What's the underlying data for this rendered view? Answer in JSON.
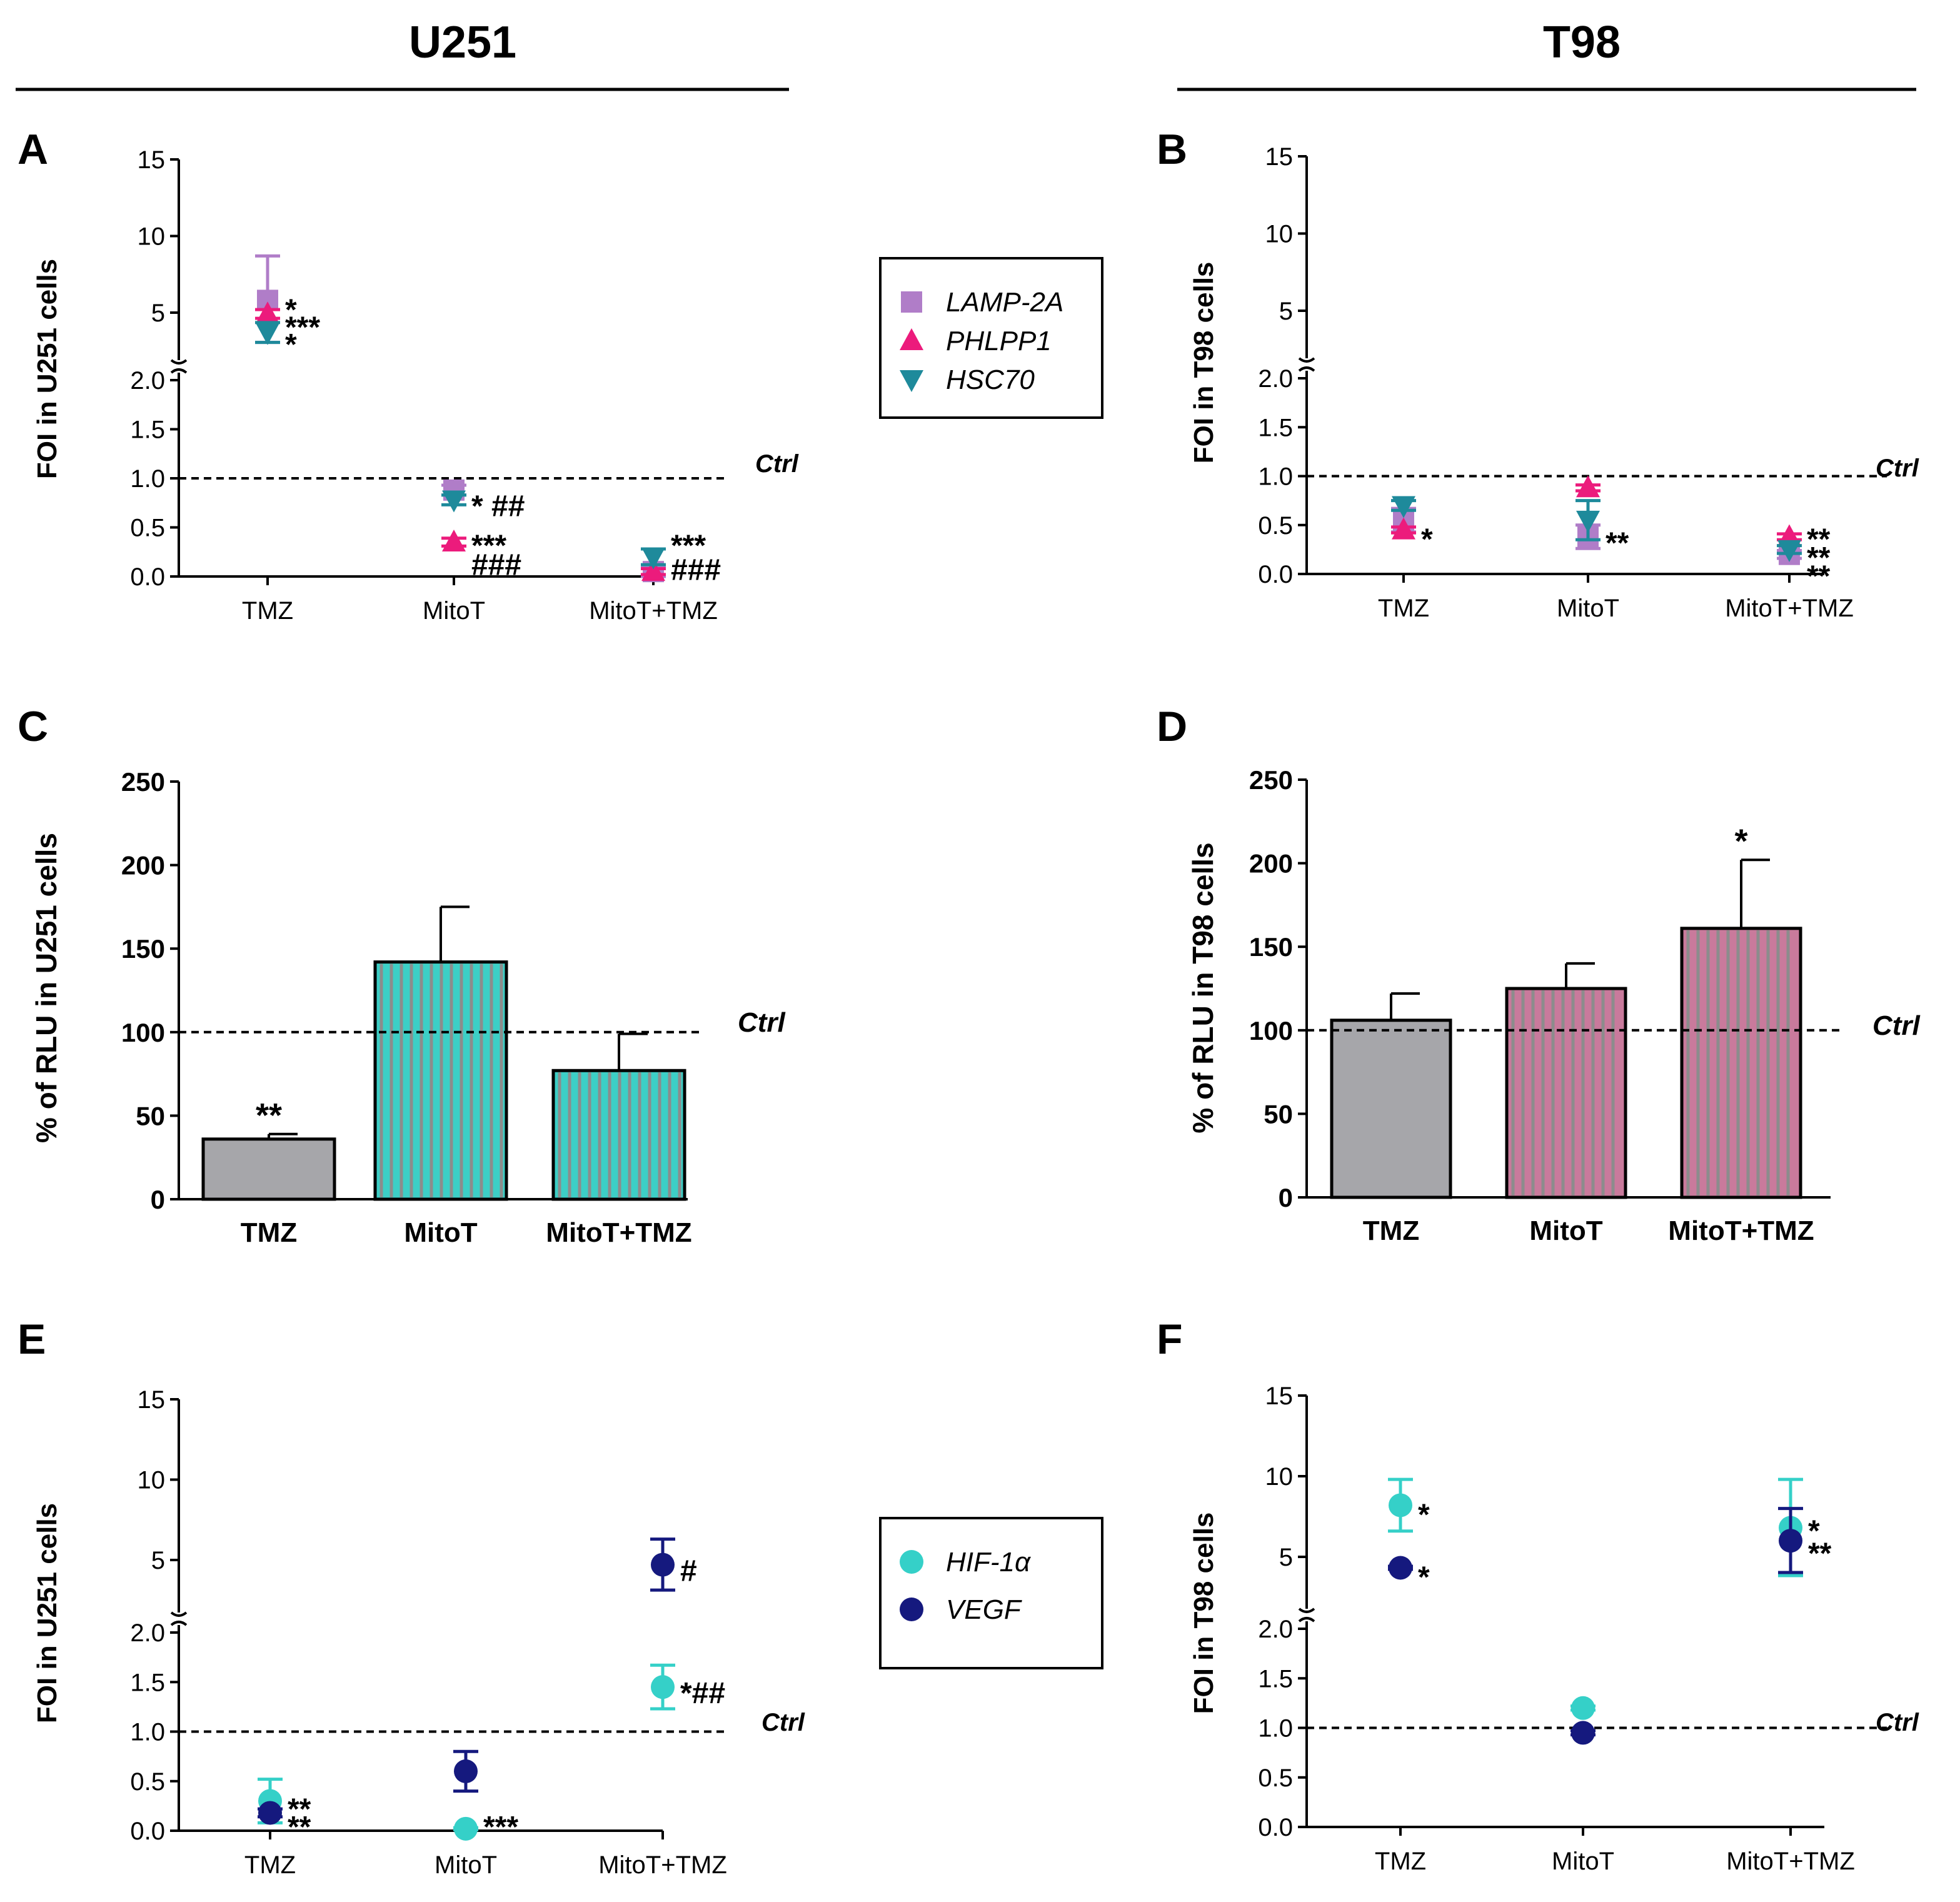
{
  "headers": {
    "left": "U251",
    "right": "T98"
  },
  "ctrl_label": "Ctrl",
  "legend_top": {
    "items": [
      {
        "label": "LAMP-2A",
        "marker": "square",
        "color": "#B07DC8"
      },
      {
        "label": "PHLPP1",
        "marker": "triangle-up",
        "color": "#EC1B7C"
      },
      {
        "label": "HSC70",
        "marker": "triangle-down",
        "color": "#1E8A9B"
      }
    ]
  },
  "legend_bottom": {
    "items": [
      {
        "label": "HIF-1α",
        "marker": "circle",
        "color": "#35D0C8"
      },
      {
        "label": "VEGF",
        "marker": "circle",
        "color": "#15197E"
      }
    ]
  },
  "colors": {
    "lamp": "#B07DC8",
    "phlpp": "#EC1B7C",
    "hsc": "#1E8A9B",
    "hif": "#35D0C8",
    "vegf": "#15197E",
    "grey_bar": "#A6A6AA",
    "teal_bar": "#3CCFC6",
    "pink_bar": "#C97A9C"
  },
  "chart_data": [
    {
      "panel": "A",
      "type": "scatter",
      "ylabel": "FOI in U251 cells",
      "categories": [
        "TMZ",
        "MitoT",
        "MitoT+TMZ"
      ],
      "y_lower_range": [
        0,
        2
      ],
      "y_upper_range": [
        2,
        15
      ],
      "y_lower_ticks": [
        "0.0",
        "0.5",
        "1.0",
        "1.5",
        "2.0"
      ],
      "y_upper_ticks": [
        "5",
        "10",
        "15"
      ],
      "reference_line": 1.0,
      "series": [
        {
          "name": "LAMP-2A",
          "values": [
            5.8,
            0.88,
            0.05
          ],
          "errors": [
            2.9,
            0.05,
            0.05
          ]
        },
        {
          "name": "PHLPP1",
          "values": [
            4.9,
            0.35,
            0.05
          ],
          "errors": [
            0.3,
            0.04,
            0.03
          ]
        },
        {
          "name": "HSC70",
          "values": [
            3.6,
            0.78,
            0.2
          ],
          "errors": [
            0.7,
            0.05,
            0.08
          ]
        }
      ],
      "annotations": [
        {
          "category": "TMZ",
          "text": "*",
          "value": 5.6
        },
        {
          "category": "TMZ",
          "text": "***",
          "value": 4.4
        },
        {
          "category": "TMZ",
          "text": "*",
          "value": 3.2
        },
        {
          "category": "MitoT",
          "text": "* ##",
          "value": 0.78
        },
        {
          "category": "MitoT",
          "text": "***",
          "value": 0.38
        },
        {
          "category": "MitoT",
          "text": "###",
          "value": 0.18
        },
        {
          "category": "MitoT+TMZ",
          "text": "***",
          "value": 0.38
        },
        {
          "category": "MitoT+TMZ",
          "text": "###",
          "value": 0.13
        }
      ]
    },
    {
      "panel": "B",
      "type": "scatter",
      "ylabel": "FOI in T98 cells",
      "categories": [
        "TMZ",
        "MitoT",
        "MitoT+TMZ"
      ],
      "y_lower_range": [
        0,
        2
      ],
      "y_upper_range": [
        2,
        15
      ],
      "y_lower_ticks": [
        "0.0",
        "0.5",
        "1.0",
        "1.5",
        "2.0"
      ],
      "y_upper_ticks": [
        "5",
        "10",
        "15"
      ],
      "reference_line": 1.0,
      "series": [
        {
          "name": "LAMP-2A",
          "values": [
            0.55,
            0.38,
            0.2
          ],
          "errors": [
            0.12,
            0.12,
            0.04
          ]
        },
        {
          "name": "PHLPP1",
          "values": [
            0.45,
            0.88,
            0.38
          ],
          "errors": [
            0.03,
            0.03,
            0.03
          ]
        },
        {
          "name": "HSC70",
          "values": [
            0.7,
            0.55,
            0.25
          ],
          "errors": [
            0.05,
            0.2,
            0.04
          ]
        }
      ],
      "annotations": [
        {
          "category": "TMZ",
          "text": "*",
          "value": 0.42
        },
        {
          "category": "MitoT",
          "text": "**",
          "value": 0.38
        },
        {
          "category": "MitoT+TMZ",
          "text": "**",
          "value": 0.42
        },
        {
          "category": "MitoT+TMZ",
          "text": "**",
          "value": 0.23
        },
        {
          "category": "MitoT+TMZ",
          "text": "**",
          "value": 0.04
        }
      ]
    },
    {
      "panel": "C",
      "type": "bar",
      "ylabel": "% of RLU in U251 cells",
      "categories": [
        "TMZ",
        "MitoT",
        "MitoT+TMZ"
      ],
      "values": [
        36,
        142,
        77
      ],
      "errors": [
        3,
        33,
        22
      ],
      "ylim": [
        0,
        250
      ],
      "y_ticks": [
        "0",
        "50",
        "100",
        "150",
        "200",
        "250"
      ],
      "reference_line": 100,
      "annotations": [
        {
          "category": "TMZ",
          "text": "**"
        }
      ]
    },
    {
      "panel": "D",
      "type": "bar",
      "ylabel": "% of RLU in T98 cells",
      "categories": [
        "TMZ",
        "MitoT",
        "MitoT+TMZ"
      ],
      "values": [
        106,
        125,
        161
      ],
      "errors": [
        16,
        15,
        41
      ],
      "ylim": [
        0,
        250
      ],
      "y_ticks": [
        "0",
        "50",
        "100",
        "150",
        "200",
        "250"
      ],
      "reference_line": 100,
      "annotations": [
        {
          "category": "MitoT+TMZ",
          "text": "*"
        }
      ]
    },
    {
      "panel": "E",
      "type": "scatter",
      "ylabel": "FOI in U251 cells",
      "categories": [
        "TMZ",
        "MitoT",
        "MitoT+TMZ"
      ],
      "y_lower_range": [
        0,
        2
      ],
      "y_upper_range": [
        2,
        15
      ],
      "y_lower_ticks": [
        "0.0",
        "0.5",
        "1.0",
        "1.5",
        "2.0"
      ],
      "y_upper_ticks": [
        "5",
        "10",
        "15"
      ],
      "reference_line": 1.0,
      "series": [
        {
          "name": "HIF-1α",
          "values": [
            0.3,
            0.02,
            1.45
          ],
          "errors": [
            0.22,
            0.01,
            0.22
          ]
        },
        {
          "name": "VEGF",
          "values": [
            0.18,
            0.6,
            4.7
          ],
          "errors": [
            0.04,
            0.2,
            1.6
          ]
        }
      ],
      "annotations": [
        {
          "category": "TMZ",
          "text": "**",
          "value": 0.28
        },
        {
          "category": "TMZ",
          "text": "**",
          "value": 0.1
        },
        {
          "category": "MitoT",
          "text": "***",
          "value": 0.1
        },
        {
          "category": "MitoT+TMZ",
          "text": "#",
          "value": 4.7
        },
        {
          "category": "MitoT+TMZ",
          "text": "*##",
          "value": 1.45
        }
      ]
    },
    {
      "panel": "F",
      "type": "scatter",
      "ylabel": "FOI in T98 cells",
      "categories": [
        "TMZ",
        "MitoT",
        "MitoT+TMZ"
      ],
      "y_lower_range": [
        0,
        2
      ],
      "y_upper_range": [
        2,
        15
      ],
      "y_lower_ticks": [
        "0.0",
        "0.5",
        "1.0",
        "1.5",
        "2.0"
      ],
      "y_upper_ticks": [
        "5",
        "10",
        "15"
      ],
      "reference_line": 1.0,
      "series": [
        {
          "name": "HIF-1α",
          "values": [
            8.2,
            1.2,
            6.8
          ],
          "errors": [
            1.6,
            0.02,
            3.0
          ]
        },
        {
          "name": "VEGF",
          "values": [
            4.3,
            0.95,
            6.0
          ],
          "errors": [
            0.1,
            0.02,
            2.0
          ]
        }
      ],
      "annotations": [
        {
          "category": "TMZ",
          "text": "*",
          "value": 8.0
        },
        {
          "category": "TMZ",
          "text": "*",
          "value": 4.1
        },
        {
          "category": "MitoT+TMZ",
          "text": "*",
          "value": 7.0
        },
        {
          "category": "MitoT+TMZ",
          "text": "**",
          "value": 5.6
        }
      ]
    }
  ]
}
